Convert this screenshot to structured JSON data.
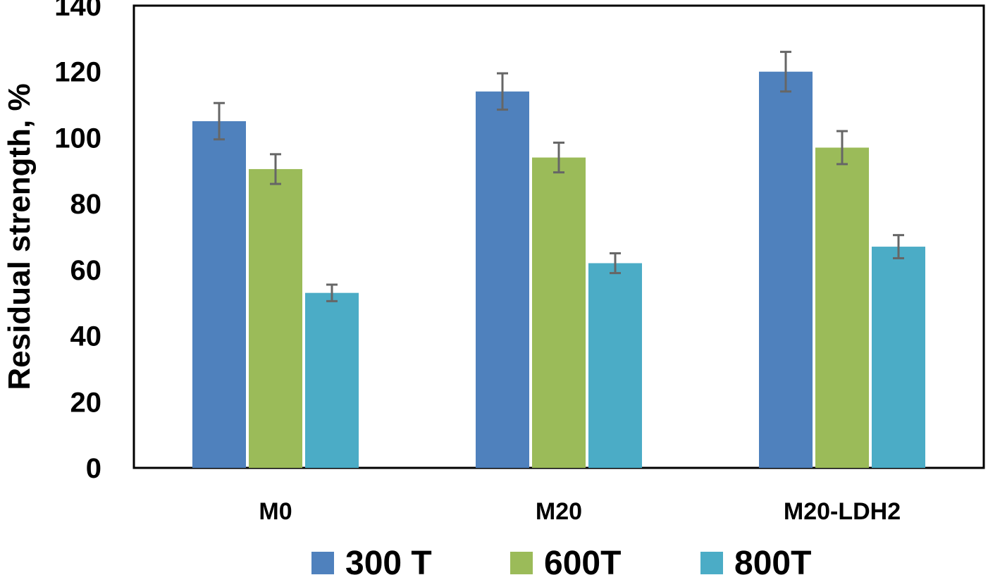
{
  "chart_data": {
    "type": "bar",
    "title": "",
    "xlabel": "",
    "ylabel": "Residual strength, %",
    "ylim": [
      0,
      140
    ],
    "yticks": [
      0,
      20,
      40,
      60,
      80,
      100,
      120,
      140
    ],
    "categories": [
      "M0",
      "M20",
      "M20-LDH2"
    ],
    "series": [
      {
        "name": "300 T",
        "color": "#4F81BD",
        "values": [
          105,
          114,
          120
        ],
        "errors": [
          5.5,
          5.5,
          6
        ]
      },
      {
        "name": "600T",
        "color": "#9BBB59",
        "values": [
          90.5,
          94,
          97
        ],
        "errors": [
          4.5,
          4.5,
          5
        ]
      },
      {
        "name": "800T",
        "color": "#4BACC6",
        "values": [
          53,
          62,
          67
        ],
        "errors": [
          2.5,
          3,
          3.5
        ]
      }
    ],
    "legend_position": "bottom",
    "grid": false
  }
}
